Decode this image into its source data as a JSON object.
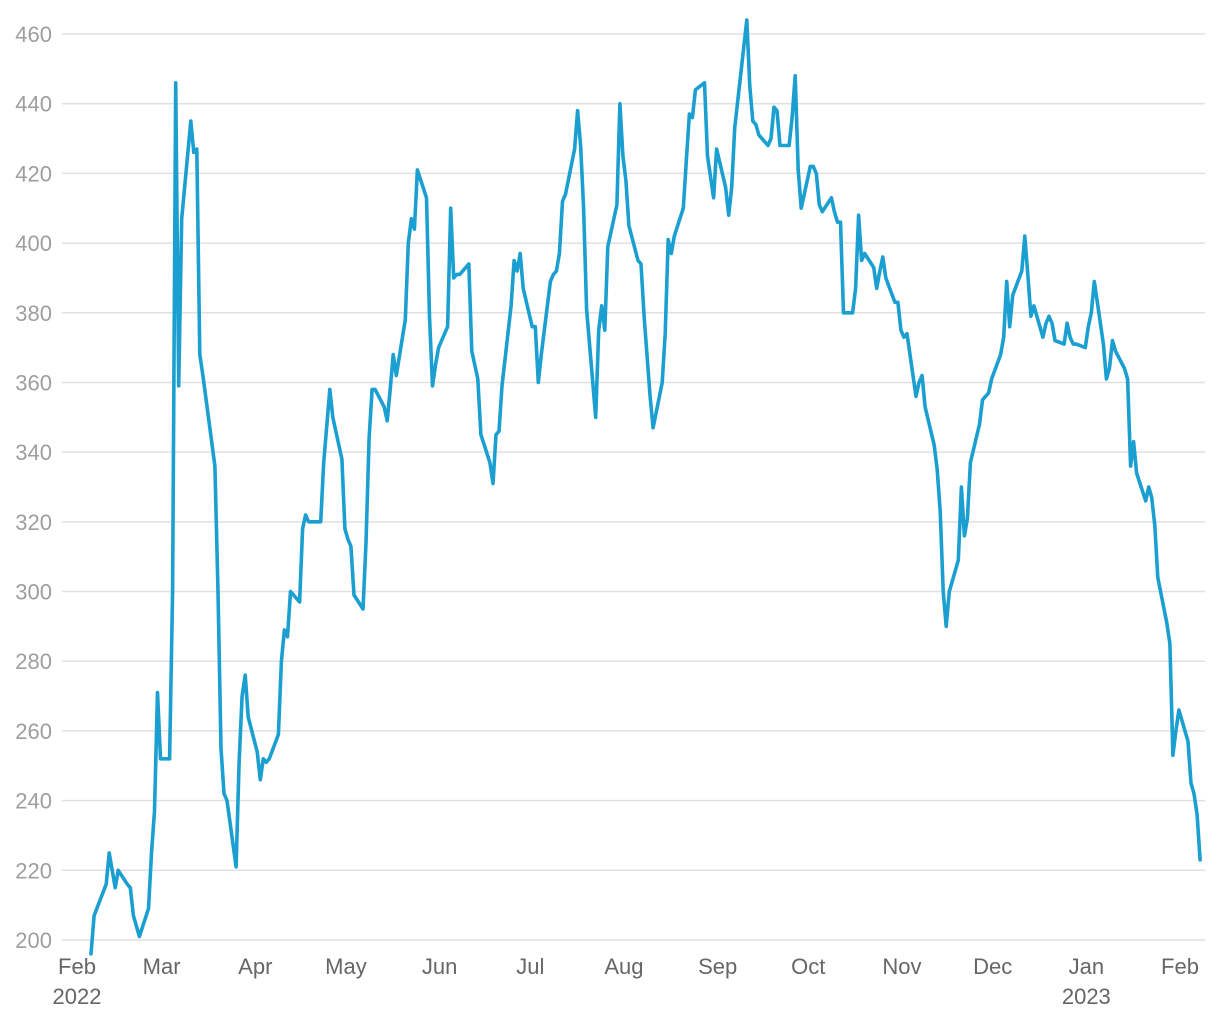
{
  "chart_data": {
    "type": "line",
    "title": "",
    "xlabel": "",
    "ylabel": "",
    "ylim": [
      200,
      460
    ],
    "xlim": [
      "2022-02-01",
      "2023-02-07"
    ],
    "grid": true,
    "legend": "none",
    "line_color": "#1b9fd0",
    "y_ticks": [
      "200",
      "220",
      "240",
      "260",
      "280",
      "300",
      "320",
      "340",
      "360",
      "380",
      "400",
      "420",
      "440",
      "460"
    ],
    "x_ticks": [
      {
        "date": "2022-02-01",
        "label": "Feb",
        "sublabel": "2022"
      },
      {
        "date": "2022-03-01",
        "label": "Mar",
        "sublabel": ""
      },
      {
        "date": "2022-04-01",
        "label": "Apr",
        "sublabel": ""
      },
      {
        "date": "2022-05-01",
        "label": "May",
        "sublabel": ""
      },
      {
        "date": "2022-06-01",
        "label": "Jun",
        "sublabel": ""
      },
      {
        "date": "2022-07-01",
        "label": "Jul",
        "sublabel": ""
      },
      {
        "date": "2022-08-01",
        "label": "Aug",
        "sublabel": ""
      },
      {
        "date": "2022-09-01",
        "label": "Sep",
        "sublabel": ""
      },
      {
        "date": "2022-10-01",
        "label": "Oct",
        "sublabel": ""
      },
      {
        "date": "2022-11-01",
        "label": "Nov",
        "sublabel": ""
      },
      {
        "date": "2022-12-01",
        "label": "Dec",
        "sublabel": ""
      },
      {
        "date": "2023-01-01",
        "label": "Jan",
        "sublabel": "2023"
      },
      {
        "date": "2023-02-01",
        "label": "Feb",
        "sublabel": ""
      }
    ],
    "series": [
      {
        "points": [
          [
            "2022-02-03",
            196
          ],
          [
            "2022-02-04",
            207
          ],
          [
            "2022-02-08",
            216
          ],
          [
            "2022-02-09",
            225
          ],
          [
            "2022-02-11",
            215
          ],
          [
            "2022-02-12",
            220
          ],
          [
            "2022-02-15",
            216
          ],
          [
            "2022-02-16",
            215
          ],
          [
            "2022-02-17",
            207
          ],
          [
            "2022-02-18",
            204
          ],
          [
            "2022-02-19",
            201
          ],
          [
            "2022-02-22",
            209
          ],
          [
            "2022-02-23",
            225
          ],
          [
            "2022-02-24",
            237
          ],
          [
            "2022-02-25",
            271
          ],
          [
            "2022-02-26",
            252
          ],
          [
            "2022-02-28",
            252
          ],
          [
            "2022-03-01",
            252
          ],
          [
            "2022-03-02",
            300
          ],
          [
            "2022-03-03",
            446
          ],
          [
            "2022-03-04",
            359
          ],
          [
            "2022-03-05",
            407
          ],
          [
            "2022-03-08",
            435
          ],
          [
            "2022-03-09",
            426
          ],
          [
            "2022-03-10",
            427
          ],
          [
            "2022-03-11",
            368
          ],
          [
            "2022-03-12",
            362
          ],
          [
            "2022-03-16",
            336
          ],
          [
            "2022-03-17",
            300
          ],
          [
            "2022-03-18",
            255
          ],
          [
            "2022-03-19",
            242
          ],
          [
            "2022-03-20",
            240
          ],
          [
            "2022-03-23",
            221
          ],
          [
            "2022-03-24",
            251
          ],
          [
            "2022-03-25",
            270
          ],
          [
            "2022-03-26",
            276
          ],
          [
            "2022-03-27",
            264
          ],
          [
            "2022-03-30",
            254
          ],
          [
            "2022-03-31",
            246
          ],
          [
            "2022-04-01",
            252
          ],
          [
            "2022-04-02",
            251
          ],
          [
            "2022-04-03",
            252
          ],
          [
            "2022-04-06",
            259
          ],
          [
            "2022-04-07",
            280
          ],
          [
            "2022-04-08",
            289
          ],
          [
            "2022-04-09",
            287
          ],
          [
            "2022-04-10",
            300
          ],
          [
            "2022-04-13",
            297
          ],
          [
            "2022-04-14",
            318
          ],
          [
            "2022-04-15",
            322
          ],
          [
            "2022-04-16",
            320
          ],
          [
            "2022-04-20",
            320
          ],
          [
            "2022-04-21",
            337
          ],
          [
            "2022-04-23",
            358
          ],
          [
            "2022-04-24",
            350
          ],
          [
            "2022-04-27",
            338
          ],
          [
            "2022-04-28",
            318
          ],
          [
            "2022-04-29",
            315
          ],
          [
            "2022-04-30",
            313
          ],
          [
            "2022-05-01",
            299
          ],
          [
            "2022-05-04",
            295
          ],
          [
            "2022-05-05",
            314
          ],
          [
            "2022-05-06",
            344
          ],
          [
            "2022-05-07",
            358
          ],
          [
            "2022-05-08",
            358
          ],
          [
            "2022-05-11",
            353
          ],
          [
            "2022-05-12",
            349
          ],
          [
            "2022-05-13",
            358
          ],
          [
            "2022-05-14",
            368
          ],
          [
            "2022-05-15",
            362
          ],
          [
            "2022-05-18",
            378
          ],
          [
            "2022-05-19",
            400
          ],
          [
            "2022-05-20",
            407
          ],
          [
            "2022-05-21",
            404
          ],
          [
            "2022-05-22",
            421
          ],
          [
            "2022-05-25",
            413
          ],
          [
            "2022-05-26",
            379
          ],
          [
            "2022-05-27",
            359
          ],
          [
            "2022-05-28",
            365
          ],
          [
            "2022-05-29",
            370
          ],
          [
            "2022-06-01",
            376
          ],
          [
            "2022-06-02",
            410
          ],
          [
            "2022-06-03",
            390
          ],
          [
            "2022-06-04",
            391
          ],
          [
            "2022-06-05",
            391
          ],
          [
            "2022-06-08",
            394
          ],
          [
            "2022-06-09",
            369
          ],
          [
            "2022-06-11",
            361
          ],
          [
            "2022-06-12",
            345
          ],
          [
            "2022-06-15",
            337
          ],
          [
            "2022-06-16",
            331
          ],
          [
            "2022-06-17",
            345
          ],
          [
            "2022-06-18",
            346
          ],
          [
            "2022-06-19",
            359
          ],
          [
            "2022-06-22",
            382
          ],
          [
            "2022-06-23",
            395
          ],
          [
            "2022-06-24",
            392
          ],
          [
            "2022-06-25",
            397
          ],
          [
            "2022-06-26",
            387
          ],
          [
            "2022-06-29",
            376
          ],
          [
            "2022-06-30",
            376
          ],
          [
            "2022-07-01",
            360
          ],
          [
            "2022-07-02",
            368
          ],
          [
            "2022-07-05",
            389
          ],
          [
            "2022-07-06",
            391
          ],
          [
            "2022-07-07",
            392
          ],
          [
            "2022-07-08",
            397
          ],
          [
            "2022-07-09",
            412
          ],
          [
            "2022-07-10",
            414
          ],
          [
            "2022-07-13",
            427
          ],
          [
            "2022-07-14",
            438
          ],
          [
            "2022-07-15",
            428
          ],
          [
            "2022-07-16",
            410
          ],
          [
            "2022-07-17",
            381
          ],
          [
            "2022-07-20",
            350
          ],
          [
            "2022-07-21",
            375
          ],
          [
            "2022-07-22",
            382
          ],
          [
            "2022-07-23",
            375
          ],
          [
            "2022-07-24",
            399
          ],
          [
            "2022-07-27",
            411
          ],
          [
            "2022-07-28",
            440
          ],
          [
            "2022-07-29",
            425
          ],
          [
            "2022-07-30",
            418
          ],
          [
            "2022-07-31",
            405
          ],
          [
            "2022-08-03",
            395
          ],
          [
            "2022-08-04",
            394
          ],
          [
            "2022-08-05",
            379
          ],
          [
            "2022-08-07",
            356
          ],
          [
            "2022-08-08",
            347
          ],
          [
            "2022-08-11",
            360
          ],
          [
            "2022-08-12",
            374
          ],
          [
            "2022-08-13",
            401
          ],
          [
            "2022-08-14",
            397
          ],
          [
            "2022-08-15",
            402
          ],
          [
            "2022-08-18",
            410
          ],
          [
            "2022-08-19",
            424
          ],
          [
            "2022-08-20",
            437
          ],
          [
            "2022-08-21",
            436
          ],
          [
            "2022-08-22",
            444
          ],
          [
            "2022-08-25",
            446
          ],
          [
            "2022-08-26",
            425
          ],
          [
            "2022-08-28",
            413
          ],
          [
            "2022-08-29",
            427
          ],
          [
            "2022-09-01",
            416
          ],
          [
            "2022-09-02",
            408
          ],
          [
            "2022-09-03",
            416
          ],
          [
            "2022-09-04",
            433
          ],
          [
            "2022-09-08",
            464
          ],
          [
            "2022-09-09",
            445
          ],
          [
            "2022-09-10",
            435
          ],
          [
            "2022-09-11",
            434
          ],
          [
            "2022-09-12",
            431
          ],
          [
            "2022-09-15",
            428
          ],
          [
            "2022-09-16",
            430
          ],
          [
            "2022-09-17",
            439
          ],
          [
            "2022-09-18",
            438
          ],
          [
            "2022-09-19",
            428
          ],
          [
            "2022-09-22",
            428
          ],
          [
            "2022-09-23",
            436
          ],
          [
            "2022-09-24",
            448
          ],
          [
            "2022-09-25",
            421
          ],
          [
            "2022-09-26",
            410
          ],
          [
            "2022-09-29",
            422
          ],
          [
            "2022-09-30",
            422
          ],
          [
            "2022-10-01",
            420
          ],
          [
            "2022-10-02",
            411
          ],
          [
            "2022-10-03",
            409
          ],
          [
            "2022-10-06",
            413
          ],
          [
            "2022-10-07",
            409
          ],
          [
            "2022-10-08",
            406
          ],
          [
            "2022-10-09",
            406
          ],
          [
            "2022-10-10",
            380
          ],
          [
            "2022-10-13",
            380
          ],
          [
            "2022-10-14",
            387
          ],
          [
            "2022-10-15",
            408
          ],
          [
            "2022-10-16",
            395
          ],
          [
            "2022-10-17",
            397
          ],
          [
            "2022-10-20",
            393
          ],
          [
            "2022-10-21",
            387
          ],
          [
            "2022-10-22",
            392
          ],
          [
            "2022-10-23",
            396
          ],
          [
            "2022-10-24",
            390
          ],
          [
            "2022-10-27",
            383
          ],
          [
            "2022-10-28",
            383
          ],
          [
            "2022-10-29",
            375
          ],
          [
            "2022-10-30",
            373
          ],
          [
            "2022-10-31",
            374
          ],
          [
            "2022-11-03",
            356
          ],
          [
            "2022-11-04",
            360
          ],
          [
            "2022-11-05",
            362
          ],
          [
            "2022-11-06",
            353
          ],
          [
            "2022-11-09",
            342
          ],
          [
            "2022-11-10",
            335
          ],
          [
            "2022-11-11",
            323
          ],
          [
            "2022-11-12",
            300
          ],
          [
            "2022-11-13",
            290
          ],
          [
            "2022-11-14",
            300
          ],
          [
            "2022-11-17",
            309
          ],
          [
            "2022-11-18",
            330
          ],
          [
            "2022-11-19",
            316
          ],
          [
            "2022-11-20",
            321
          ],
          [
            "2022-11-21",
            337
          ],
          [
            "2022-11-24",
            348
          ],
          [
            "2022-11-25",
            355
          ],
          [
            "2022-11-26",
            356
          ],
          [
            "2022-11-27",
            357
          ],
          [
            "2022-11-28",
            361
          ],
          [
            "2022-12-01",
            368
          ],
          [
            "2022-12-02",
            373
          ],
          [
            "2022-12-03",
            389
          ],
          [
            "2022-12-04",
            376
          ],
          [
            "2022-12-05",
            385
          ],
          [
            "2022-12-08",
            392
          ],
          [
            "2022-12-09",
            402
          ],
          [
            "2022-12-10",
            391
          ],
          [
            "2022-12-11",
            379
          ],
          [
            "2022-12-12",
            382
          ],
          [
            "2022-12-15",
            373
          ],
          [
            "2022-12-16",
            377
          ],
          [
            "2022-12-17",
            379
          ],
          [
            "2022-12-18",
            377
          ],
          [
            "2022-12-19",
            372
          ],
          [
            "2022-12-22",
            371
          ],
          [
            "2022-12-23",
            377
          ],
          [
            "2022-12-24",
            373
          ],
          [
            "2022-12-25",
            371
          ],
          [
            "2022-12-26",
            371
          ],
          [
            "2022-12-29",
            370
          ],
          [
            "2022-12-30",
            376
          ],
          [
            "2022-12-31",
            380
          ],
          [
            "2023-01-01",
            389
          ],
          [
            "2023-01-04",
            371
          ],
          [
            "2023-01-05",
            361
          ],
          [
            "2023-01-06",
            364
          ],
          [
            "2023-01-07",
            372
          ],
          [
            "2023-01-08",
            369
          ],
          [
            "2023-01-11",
            364
          ],
          [
            "2023-01-12",
            361
          ],
          [
            "2023-01-13",
            336
          ],
          [
            "2023-01-14",
            343
          ],
          [
            "2023-01-15",
            334
          ],
          [
            "2023-01-18",
            326
          ],
          [
            "2023-01-19",
            330
          ],
          [
            "2023-01-20",
            327
          ],
          [
            "2023-01-21",
            319
          ],
          [
            "2023-01-22",
            304
          ],
          [
            "2023-01-25",
            291
          ],
          [
            "2023-01-26",
            285
          ],
          [
            "2023-01-27",
            253
          ],
          [
            "2023-01-28",
            260
          ],
          [
            "2023-01-29",
            266
          ],
          [
            "2023-02-01",
            257
          ],
          [
            "2023-02-02",
            245
          ],
          [
            "2023-02-03",
            242
          ],
          [
            "2023-02-04",
            236
          ],
          [
            "2023-02-05",
            223
          ]
        ]
      }
    ]
  }
}
